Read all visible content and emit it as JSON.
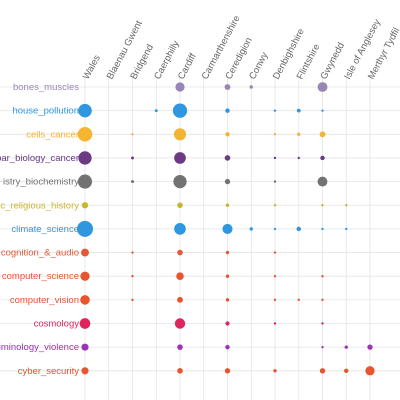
{
  "chart_data": {
    "type": "scatter",
    "x": [
      "Wales",
      "Blaenau Gwent",
      "Bridgend",
      "Caerphilly",
      "Cardiff",
      "Carmarthenshire",
      "Ceredigion",
      "Conwy",
      "Denbighshire",
      "Flintshire",
      "Gwynedd",
      "Isle of Anglesey",
      "Merthyr Tydfil"
    ],
    "y": [
      "bones_muscles",
      "house_pollution",
      "cells_cancer",
      "bar_biology_cancer",
      "istry_biochemistry",
      "ic_religious_history",
      "climate_science",
      "cognition_&_audio",
      "computer_science",
      "computer_vision",
      "cosmology",
      "criminology_violence",
      "cyber_security"
    ],
    "row_colors": [
      "#9a86b5",
      "#2f97e0",
      "#f5b431",
      "#6b3a82",
      "#727272",
      "#c9b62e",
      "#2f97e0",
      "#e05a3a",
      "#e8542e",
      "#e8542e",
      "#e0245e",
      "#9b35b5",
      "#e8542e"
    ],
    "values": [
      [
        0,
        0,
        0,
        0,
        1.5,
        0,
        0.6,
        0.2,
        0,
        0,
        1.7,
        0,
        0
      ],
      [
        3.2,
        0,
        0,
        0.15,
        3.6,
        0,
        0.35,
        0,
        0.1,
        0.25,
        0.1,
        0,
        0
      ],
      [
        3.7,
        0,
        0.1,
        0,
        2.6,
        0,
        0.35,
        0,
        0.1,
        0.2,
        0.6,
        0,
        0
      ],
      [
        3.1,
        0,
        0.15,
        0,
        2.4,
        0,
        0.55,
        0,
        0.1,
        0.1,
        0.35,
        0,
        0
      ],
      [
        3.5,
        0,
        0.15,
        0,
        3.1,
        0,
        0.5,
        0,
        0.1,
        0,
        1.7,
        0,
        0
      ],
      [
        0.7,
        0,
        0,
        0,
        0.55,
        0,
        0.2,
        0,
        0.1,
        0,
        0.1,
        0.1,
        0
      ],
      [
        4.5,
        0,
        0,
        0,
        2.4,
        0,
        1.8,
        0.2,
        0.1,
        0.35,
        0.1,
        0.1,
        0
      ],
      [
        1.1,
        0,
        0.1,
        0,
        0.55,
        0,
        0.2,
        0,
        0.1,
        0,
        0,
        0,
        0
      ],
      [
        1.5,
        0,
        0.1,
        0,
        1.0,
        0,
        0.2,
        0,
        0.1,
        0,
        0.1,
        0,
        0
      ],
      [
        1.6,
        0,
        0.1,
        0,
        0.6,
        0,
        0.2,
        0,
        0.1,
        0.1,
        0.1,
        0,
        0
      ],
      [
        2.0,
        0,
        0,
        0,
        1.9,
        0,
        0.3,
        0,
        0.1,
        0,
        0.1,
        0,
        0
      ],
      [
        0.9,
        0,
        0,
        0,
        0.55,
        0,
        0.35,
        0,
        0,
        0,
        0.1,
        0.2,
        0.5
      ],
      [
        0.9,
        0,
        0,
        0,
        0.55,
        0,
        0.5,
        0,
        0.2,
        0,
        0.5,
        0.35,
        1.5
      ]
    ],
    "grid": true
  }
}
